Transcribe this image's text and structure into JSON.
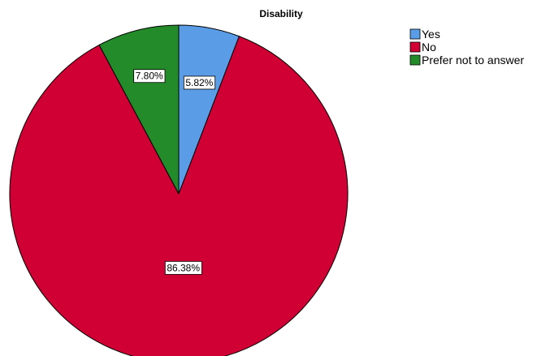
{
  "chart_data": {
    "type": "pie",
    "title": "Disability",
    "slices": [
      {
        "name": "Yes",
        "value": 5.82,
        "label": "5.82%",
        "color": "#5b9ce6"
      },
      {
        "name": "No",
        "value": 86.38,
        "label": "86.38%",
        "color": "#d10034"
      },
      {
        "name": "Prefer not to answer",
        "value": 7.8,
        "label": "7.80%",
        "color": "#248b2a"
      }
    ],
    "start_angle": "12 o'clock",
    "direction": "clockwise",
    "legend_position": "top-right"
  }
}
